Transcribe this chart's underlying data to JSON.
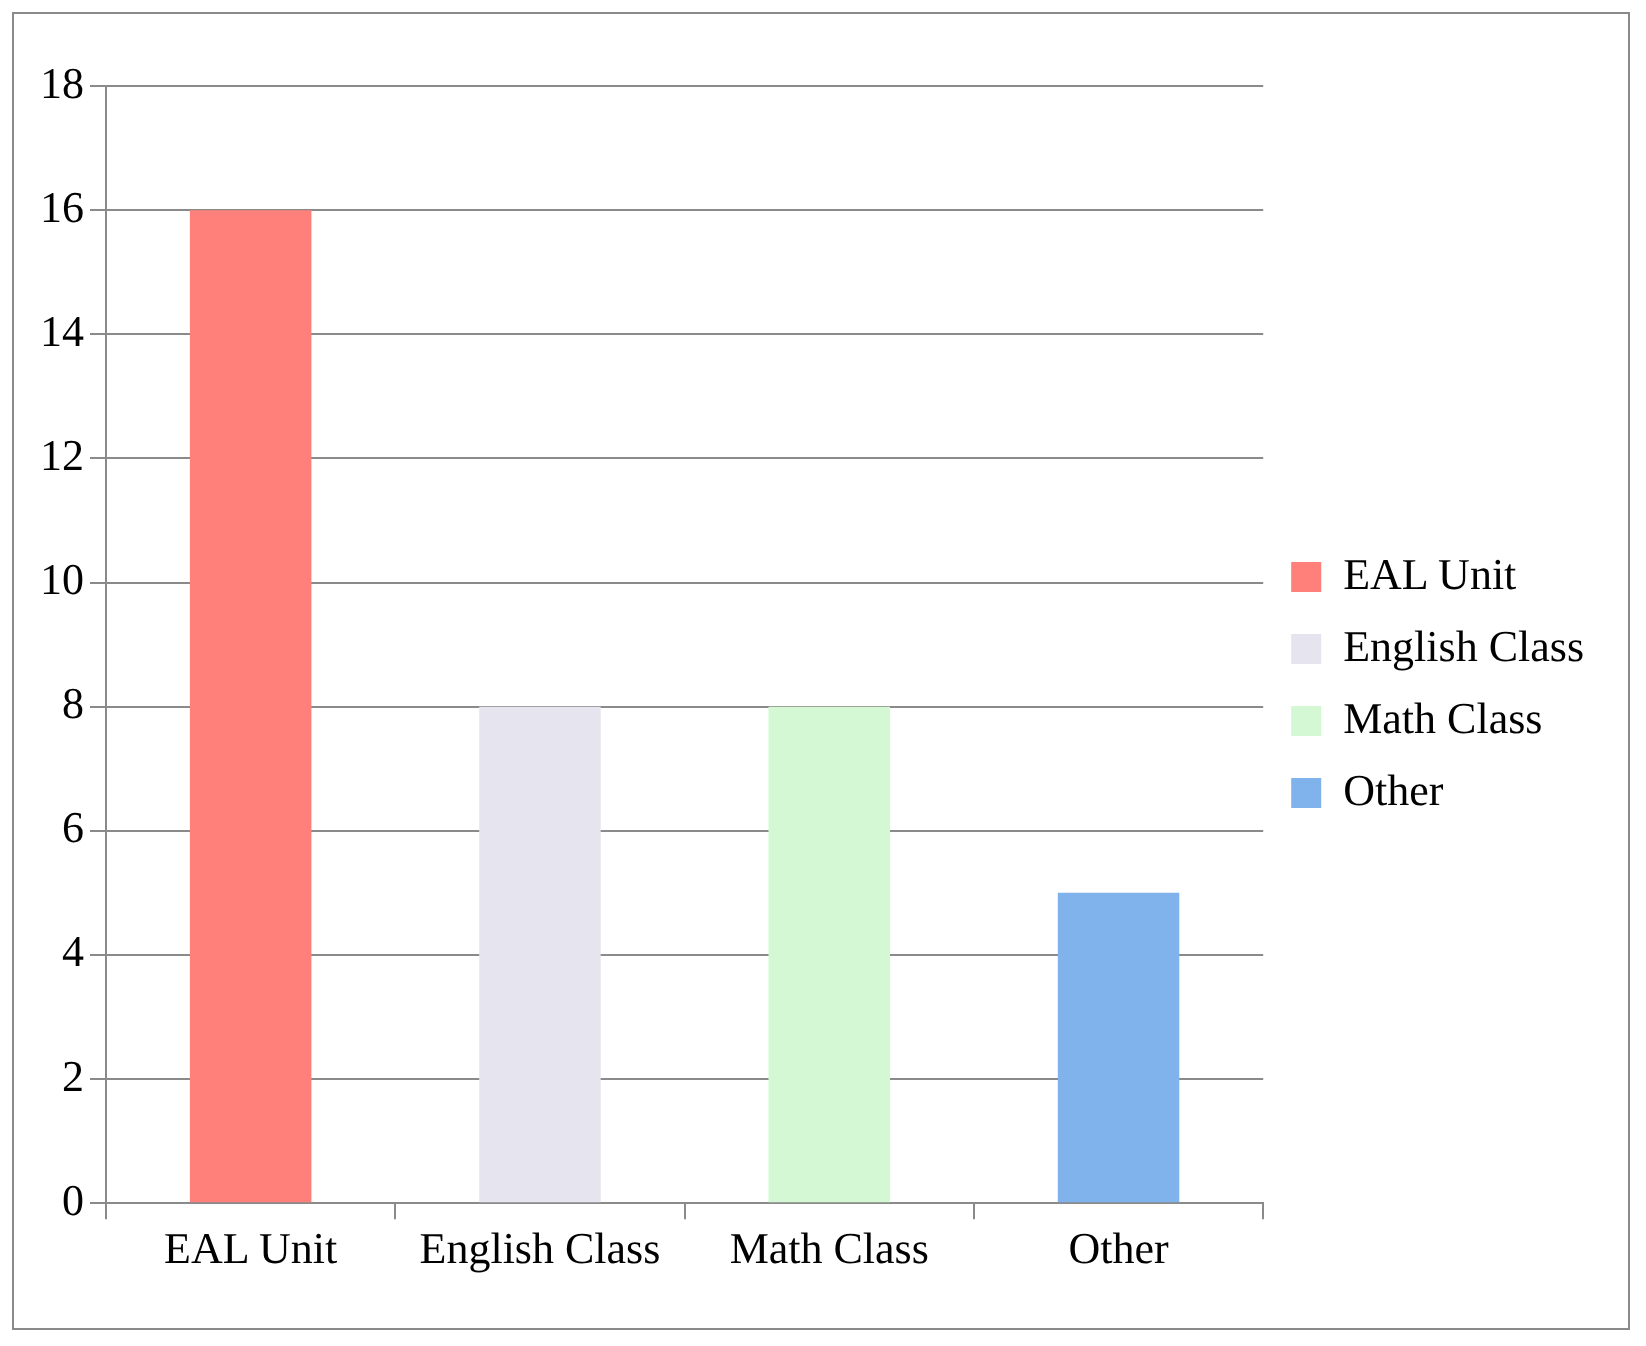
{
  "chart_data": {
    "type": "bar",
    "categories": [
      "EAL Unit",
      "English Class",
      "Math Class",
      "Other"
    ],
    "series": [
      {
        "name": "EAL Unit",
        "color": "#ff7f7a",
        "values": [
          16,
          null,
          null,
          null
        ]
      },
      {
        "name": "English Class",
        "color": "#e6e4ee",
        "values": [
          null,
          8,
          null,
          null
        ]
      },
      {
        "name": "Math Class",
        "color": "#d4f8d4",
        "values": [
          null,
          null,
          8,
          null
        ]
      },
      {
        "name": "Other",
        "color": "#80b2ec",
        "values": [
          null,
          null,
          null,
          5
        ]
      }
    ],
    "ylim": [
      0,
      18
    ],
    "yticks": [
      0,
      2,
      4,
      6,
      8,
      10,
      12,
      14,
      16,
      18
    ],
    "grid": "y",
    "legend": "right"
  }
}
